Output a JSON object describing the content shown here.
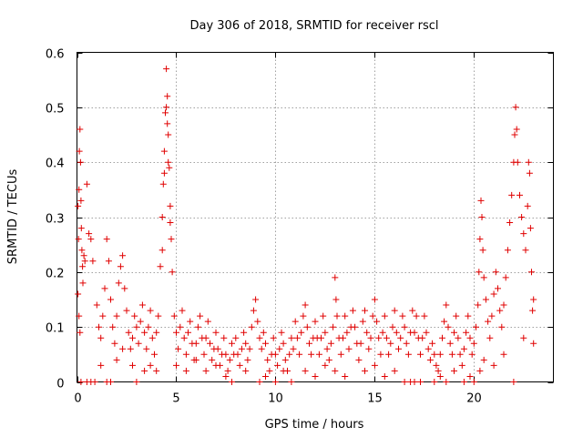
{
  "chart_data": {
    "type": "scatter",
    "title": "Day 306 of 2018, SRMTID for receiver rscl",
    "xlabel": "GPS time / hours",
    "ylabel": "SRMTID / TECUs",
    "xlim": [
      0,
      24
    ],
    "ylim": [
      0,
      0.6
    ],
    "grid": true,
    "x_ticks": [
      0,
      5,
      10,
      15,
      20
    ],
    "x_tick_labels": [
      "0",
      "5",
      "10",
      "15",
      "20"
    ],
    "y_ticks": [
      0,
      0.1,
      0.2,
      0.3,
      0.4,
      0.5,
      0.6
    ],
    "y_tick_labels": [
      "0",
      "0.1",
      "0.2",
      "0.3",
      "0.4",
      "0.5",
      "0.6"
    ],
    "marker": "+",
    "color": "#e00000",
    "series": [
      {
        "name": "rscl",
        "points": [
          [
            0.05,
            0.32
          ],
          [
            0.08,
            0.26
          ],
          [
            0.1,
            0.35
          ],
          [
            0.12,
            0.42
          ],
          [
            0.15,
            0.46
          ],
          [
            0.18,
            0.4
          ],
          [
            0.2,
            0.33
          ],
          [
            0.22,
            0.28
          ],
          [
            0.25,
            0.24
          ],
          [
            0.28,
            0.21
          ],
          [
            0.3,
            0.18
          ],
          [
            0.35,
            0.23
          ],
          [
            0.4,
            0.22
          ],
          [
            0.5,
            0.36
          ],
          [
            0.6,
            0.27
          ],
          [
            0.7,
            0.26
          ],
          [
            0.8,
            0.22
          ],
          [
            0.05,
            0.16
          ],
          [
            0.1,
            0.12
          ],
          [
            0.15,
            0.09
          ],
          [
            0.2,
            0.0
          ],
          [
            0.5,
            0.0
          ],
          [
            0.7,
            0.0
          ],
          [
            0.9,
            0.0
          ],
          [
            1.0,
            0.14
          ],
          [
            1.1,
            0.1
          ],
          [
            1.2,
            0.08
          ],
          [
            1.3,
            0.12
          ],
          [
            1.4,
            0.17
          ],
          [
            1.5,
            0.26
          ],
          [
            1.6,
            0.22
          ],
          [
            1.7,
            0.15
          ],
          [
            1.8,
            0.1
          ],
          [
            1.9,
            0.07
          ],
          [
            2.0,
            0.12
          ],
          [
            2.1,
            0.18
          ],
          [
            2.2,
            0.21
          ],
          [
            2.3,
            0.23
          ],
          [
            2.4,
            0.17
          ],
          [
            2.5,
            0.13
          ],
          [
            2.6,
            0.09
          ],
          [
            2.7,
            0.06
          ],
          [
            2.8,
            0.08
          ],
          [
            2.9,
            0.12
          ],
          [
            3.0,
            0.1
          ],
          [
            3.1,
            0.07
          ],
          [
            3.2,
            0.11
          ],
          [
            3.3,
            0.14
          ],
          [
            3.4,
            0.09
          ],
          [
            3.5,
            0.06
          ],
          [
            3.6,
            0.1
          ],
          [
            3.7,
            0.13
          ],
          [
            3.8,
            0.08
          ],
          [
            3.9,
            0.05
          ],
          [
            4.0,
            0.09
          ],
          [
            4.1,
            0.12
          ],
          [
            1.2,
            0.03
          ],
          [
            1.5,
            0.0
          ],
          [
            1.7,
            0.0
          ],
          [
            2.0,
            0.04
          ],
          [
            2.3,
            0.06
          ],
          [
            2.8,
            0.03
          ],
          [
            3.0,
            0.0
          ],
          [
            3.4,
            0.02
          ],
          [
            3.7,
            0.03
          ],
          [
            4.0,
            0.02
          ],
          [
            4.2,
            0.21
          ],
          [
            4.3,
            0.3
          ],
          [
            4.35,
            0.36
          ],
          [
            4.4,
            0.42
          ],
          [
            4.45,
            0.49
          ],
          [
            4.5,
            0.57
          ],
          [
            4.55,
            0.52
          ],
          [
            4.6,
            0.45
          ],
          [
            4.65,
            0.39
          ],
          [
            4.7,
            0.32
          ],
          [
            4.75,
            0.26
          ],
          [
            4.8,
            0.2
          ],
          [
            4.5,
            0.5
          ],
          [
            4.55,
            0.47
          ],
          [
            4.6,
            0.4
          ],
          [
            4.7,
            0.29
          ],
          [
            4.4,
            0.38
          ],
          [
            4.3,
            0.24
          ],
          [
            4.9,
            0.12
          ],
          [
            5.0,
            0.09
          ],
          [
            5.1,
            0.06
          ],
          [
            5.2,
            0.1
          ],
          [
            5.3,
            0.13
          ],
          [
            5.4,
            0.08
          ],
          [
            5.5,
            0.05
          ],
          [
            5.6,
            0.09
          ],
          [
            5.7,
            0.11
          ],
          [
            5.8,
            0.07
          ],
          [
            5.9,
            0.04
          ],
          [
            6.0,
            0.07
          ],
          [
            6.1,
            0.1
          ],
          [
            6.2,
            0.12
          ],
          [
            6.3,
            0.08
          ],
          [
            6.4,
            0.05
          ],
          [
            6.5,
            0.08
          ],
          [
            6.6,
            0.11
          ],
          [
            6.7,
            0.07
          ],
          [
            6.8,
            0.04
          ],
          [
            6.9,
            0.06
          ],
          [
            7.0,
            0.09
          ],
          [
            7.1,
            0.06
          ],
          [
            7.2,
            0.03
          ],
          [
            7.3,
            0.05
          ],
          [
            7.4,
            0.08
          ],
          [
            7.5,
            0.05
          ],
          [
            7.6,
            0.02
          ],
          [
            7.7,
            0.04
          ],
          [
            7.8,
            0.07
          ],
          [
            7.9,
            0.05
          ],
          [
            5.0,
            0.03
          ],
          [
            5.5,
            0.02
          ],
          [
            6.0,
            0.04
          ],
          [
            6.5,
            0.02
          ],
          [
            7.0,
            0.03
          ],
          [
            7.5,
            0.01
          ],
          [
            7.8,
            0.0
          ],
          [
            8.0,
            0.08
          ],
          [
            8.1,
            0.05
          ],
          [
            8.2,
            0.03
          ],
          [
            8.3,
            0.06
          ],
          [
            8.4,
            0.09
          ],
          [
            8.5,
            0.07
          ],
          [
            8.6,
            0.04
          ],
          [
            8.7,
            0.06
          ],
          [
            8.8,
            0.1
          ],
          [
            8.9,
            0.13
          ],
          [
            9.0,
            0.15
          ],
          [
            9.1,
            0.11
          ],
          [
            9.2,
            0.08
          ],
          [
            9.3,
            0.06
          ],
          [
            9.4,
            0.09
          ],
          [
            9.5,
            0.07
          ],
          [
            9.6,
            0.04
          ],
          [
            9.7,
            0.02
          ],
          [
            9.8,
            0.05
          ],
          [
            9.9,
            0.08
          ],
          [
            10.0,
            0.05
          ],
          [
            10.1,
            0.03
          ],
          [
            10.2,
            0.06
          ],
          [
            10.3,
            0.09
          ],
          [
            10.4,
            0.07
          ],
          [
            10.5,
            0.04
          ],
          [
            10.6,
            0.02
          ],
          [
            10.7,
            0.05
          ],
          [
            10.8,
            0.08
          ],
          [
            10.9,
            0.06
          ],
          [
            8.5,
            0.02
          ],
          [
            9.2,
            0.0
          ],
          [
            9.5,
            0.01
          ],
          [
            10.0,
            0.0
          ],
          [
            10.4,
            0.02
          ],
          [
            10.8,
            0.0
          ],
          [
            11.0,
            0.11
          ],
          [
            11.1,
            0.08
          ],
          [
            11.2,
            0.05
          ],
          [
            11.3,
            0.09
          ],
          [
            11.4,
            0.12
          ],
          [
            11.5,
            0.14
          ],
          [
            11.6,
            0.1
          ],
          [
            11.7,
            0.07
          ],
          [
            11.8,
            0.05
          ],
          [
            11.9,
            0.08
          ],
          [
            12.0,
            0.11
          ],
          [
            12.1,
            0.08
          ],
          [
            12.2,
            0.05
          ],
          [
            12.3,
            0.08
          ],
          [
            12.4,
            0.12
          ],
          [
            12.5,
            0.09
          ],
          [
            12.6,
            0.06
          ],
          [
            12.7,
            0.04
          ],
          [
            12.8,
            0.07
          ],
          [
            12.9,
            0.1
          ],
          [
            13.0,
            0.19
          ],
          [
            13.05,
            0.15
          ],
          [
            13.1,
            0.12
          ],
          [
            13.2,
            0.08
          ],
          [
            13.3,
            0.05
          ],
          [
            13.4,
            0.08
          ],
          [
            13.5,
            0.12
          ],
          [
            13.6,
            0.09
          ],
          [
            13.7,
            0.06
          ],
          [
            13.8,
            0.1
          ],
          [
            13.9,
            0.13
          ],
          [
            11.5,
            0.02
          ],
          [
            12.0,
            0.01
          ],
          [
            12.5,
            0.03
          ],
          [
            13.0,
            0.02
          ],
          [
            13.5,
            0.01
          ],
          [
            14.0,
            0.1
          ],
          [
            14.1,
            0.07
          ],
          [
            14.2,
            0.04
          ],
          [
            14.3,
            0.07
          ],
          [
            14.4,
            0.11
          ],
          [
            14.5,
            0.13
          ],
          [
            14.6,
            0.09
          ],
          [
            14.7,
            0.06
          ],
          [
            14.8,
            0.08
          ],
          [
            14.9,
            0.12
          ],
          [
            15.0,
            0.15
          ],
          [
            15.1,
            0.11
          ],
          [
            15.2,
            0.08
          ],
          [
            15.3,
            0.05
          ],
          [
            15.4,
            0.09
          ],
          [
            15.5,
            0.12
          ],
          [
            15.6,
            0.08
          ],
          [
            15.7,
            0.05
          ],
          [
            15.8,
            0.07
          ],
          [
            15.9,
            0.1
          ],
          [
            16.0,
            0.13
          ],
          [
            16.1,
            0.09
          ],
          [
            16.2,
            0.06
          ],
          [
            16.3,
            0.08
          ],
          [
            16.4,
            0.12
          ],
          [
            16.5,
            0.1
          ],
          [
            16.6,
            0.07
          ],
          [
            16.7,
            0.05
          ],
          [
            16.8,
            0.09
          ],
          [
            16.9,
            0.13
          ],
          [
            14.5,
            0.02
          ],
          [
            15.0,
            0.03
          ],
          [
            15.5,
            0.01
          ],
          [
            16.0,
            0.02
          ],
          [
            16.5,
            0.0
          ],
          [
            16.8,
            0.0
          ],
          [
            17.0,
            0.0
          ],
          [
            17.3,
            0.0
          ],
          [
            17.0,
            0.09
          ],
          [
            17.1,
            0.12
          ],
          [
            17.2,
            0.08
          ],
          [
            17.3,
            0.05
          ],
          [
            17.4,
            0.08
          ],
          [
            17.5,
            0.12
          ],
          [
            17.6,
            0.09
          ],
          [
            17.7,
            0.06
          ],
          [
            17.8,
            0.04
          ],
          [
            17.9,
            0.07
          ],
          [
            18.0,
            0.05
          ],
          [
            18.1,
            0.03
          ],
          [
            18.2,
            0.02
          ],
          [
            18.3,
            0.05
          ],
          [
            18.4,
            0.08
          ],
          [
            18.5,
            0.11
          ],
          [
            18.6,
            0.14
          ],
          [
            18.7,
            0.1
          ],
          [
            18.8,
            0.07
          ],
          [
            18.9,
            0.05
          ],
          [
            19.0,
            0.09
          ],
          [
            19.1,
            0.12
          ],
          [
            19.2,
            0.08
          ],
          [
            19.3,
            0.05
          ],
          [
            19.4,
            0.03
          ],
          [
            19.5,
            0.06
          ],
          [
            19.6,
            0.09
          ],
          [
            19.7,
            0.12
          ],
          [
            19.8,
            0.08
          ],
          [
            19.9,
            0.05
          ],
          [
            18.0,
            0.0
          ],
          [
            18.3,
            0.01
          ],
          [
            18.6,
            0.0
          ],
          [
            19.0,
            0.02
          ],
          [
            19.5,
            0.0
          ],
          [
            19.8,
            0.01
          ],
          [
            20.0,
            0.07
          ],
          [
            20.1,
            0.1
          ],
          [
            20.2,
            0.14
          ],
          [
            20.25,
            0.2
          ],
          [
            20.3,
            0.26
          ],
          [
            20.35,
            0.33
          ],
          [
            20.4,
            0.3
          ],
          [
            20.45,
            0.24
          ],
          [
            20.5,
            0.19
          ],
          [
            20.6,
            0.15
          ],
          [
            20.7,
            0.11
          ],
          [
            20.8,
            0.08
          ],
          [
            20.9,
            0.12
          ],
          [
            21.0,
            0.16
          ],
          [
            21.1,
            0.2
          ],
          [
            21.2,
            0.17
          ],
          [
            21.3,
            0.13
          ],
          [
            21.4,
            0.1
          ],
          [
            21.5,
            0.14
          ],
          [
            21.6,
            0.19
          ],
          [
            21.7,
            0.24
          ],
          [
            21.8,
            0.29
          ],
          [
            21.9,
            0.34
          ],
          [
            22.0,
            0.4
          ],
          [
            22.05,
            0.45
          ],
          [
            22.1,
            0.5
          ],
          [
            22.15,
            0.46
          ],
          [
            22.2,
            0.4
          ],
          [
            22.3,
            0.34
          ],
          [
            22.4,
            0.3
          ],
          [
            22.5,
            0.27
          ],
          [
            22.6,
            0.24
          ],
          [
            22.7,
            0.32
          ],
          [
            22.75,
            0.4
          ],
          [
            22.8,
            0.38
          ],
          [
            22.85,
            0.28
          ],
          [
            22.9,
            0.2
          ],
          [
            22.95,
            0.13
          ],
          [
            23.0,
            0.07
          ],
          [
            20.0,
            0.0
          ],
          [
            20.3,
            0.02
          ],
          [
            20.5,
            0.04
          ],
          [
            21.0,
            0.03
          ],
          [
            21.5,
            0.05
          ],
          [
            22.0,
            0.0
          ],
          [
            22.5,
            0.08
          ],
          [
            23.0,
            0.15
          ]
        ]
      }
    ]
  }
}
